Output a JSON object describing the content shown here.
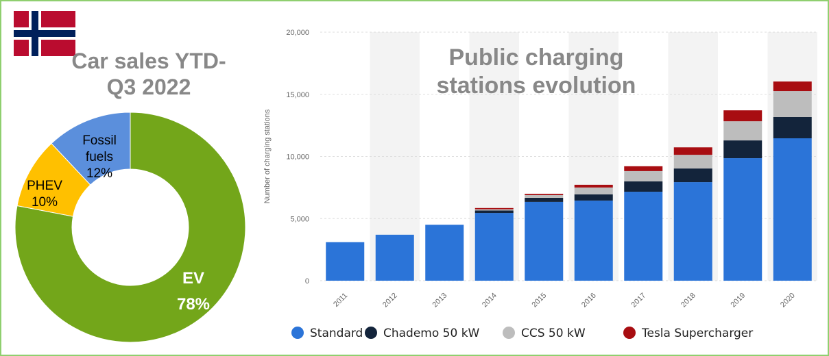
{
  "chart_data": [
    {
      "type": "donut",
      "title": "Car sales YTD-Q3 2022",
      "categories": [
        "EV",
        "PHEV",
        "Fossil fuels"
      ],
      "values": [
        78,
        10,
        12
      ],
      "value_labels": [
        "78%",
        "10%",
        "12%"
      ],
      "colors": [
        "#73a61a",
        "#ffc000",
        "#5b8fdc"
      ]
    },
    {
      "type": "stacked_bar",
      "title": "Public charging stations evolution",
      "y_label": "Number of charging stations",
      "categories": [
        "2011",
        "2012",
        "2013",
        "2014",
        "2015",
        "2016",
        "2017",
        "2018",
        "2019",
        "2020"
      ],
      "series": [
        {
          "name": "Standard",
          "color": "#2b74d8",
          "values": [
            3100,
            3700,
            4500,
            5450,
            6340,
            6450,
            7160,
            7930,
            9860,
            11460
          ]
        },
        {
          "name": "Chademo 50 kW",
          "color": "#13243b",
          "values": [
            0,
            0,
            0,
            200,
            330,
            500,
            830,
            1100,
            1430,
            1710
          ]
        },
        {
          "name": "CCS 50 kW",
          "color": "#bdbdbd",
          "values": [
            0,
            0,
            0,
            100,
            220,
            550,
            830,
            1100,
            1540,
            2090
          ]
        },
        {
          "name": "Tesla Supercharger",
          "color": "#a80d11",
          "values": [
            0,
            0,
            0,
            100,
            100,
            220,
            390,
            600,
            880,
            770
          ]
        }
      ],
      "ylim": [
        0,
        20000
      ],
      "yticks": [
        0,
        {
          "value": 5000,
          "label": "5,000"
        },
        {
          "value": 10000,
          "label": "10,000"
        },
        {
          "value": 15000,
          "label": "15,000"
        },
        {
          "value": 20000,
          "label": "20,000"
        }
      ],
      "grid": true
    }
  ]
}
